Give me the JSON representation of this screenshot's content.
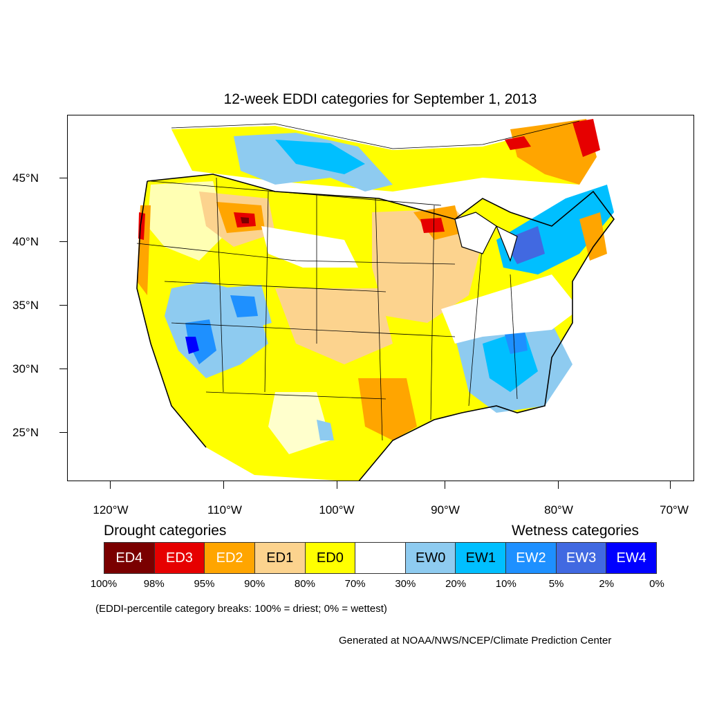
{
  "title": "12-week EDDI categories for September 1, 2013",
  "y_axis_labels": [
    "45°N",
    "40°N",
    "35°N",
    "30°N",
    "25°N"
  ],
  "x_axis_labels": [
    "120°W",
    "110°W",
    "100°W",
    "90°W",
    "80°W",
    "70°W"
  ],
  "legend": {
    "drought_heading": "Drought categories",
    "wetness_heading": "Wetness categories",
    "categories": [
      {
        "label": "ED4",
        "color": "#7a0000",
        "text_color": "#ffffff"
      },
      {
        "label": "ED3",
        "color": "#e60000",
        "text_color": "#ffffff"
      },
      {
        "label": "ED2",
        "color": "#ffa500",
        "text_color": "#ffffff"
      },
      {
        "label": "ED1",
        "color": "#fcd38e",
        "text_color": "#000000"
      },
      {
        "label": "ED0",
        "color": "#ffff00",
        "text_color": "#000000"
      },
      {
        "label": "",
        "color": "#ffffff",
        "text_color": "#000000"
      },
      {
        "label": "EW0",
        "color": "#8ecbf0",
        "text_color": "#000000"
      },
      {
        "label": "EW1",
        "color": "#00bfff",
        "text_color": "#000000"
      },
      {
        "label": "EW2",
        "color": "#1e90ff",
        "text_color": "#ffffff"
      },
      {
        "label": "EW3",
        "color": "#4169e1",
        "text_color": "#ffffff"
      },
      {
        "label": "EW4",
        "color": "#0000ff",
        "text_color": "#ffffff"
      }
    ],
    "percent_breaks": [
      "100%",
      "98%",
      "95%",
      "90%",
      "80%",
      "70%",
      "30%",
      "20%",
      "10%",
      "5%",
      "2%",
      "0%"
    ]
  },
  "note": "(EDDI-percentile category breaks: 100% = driest; 0% = wettest)",
  "credit": "Generated at NOAA/NWS/NCEP/Climate Prediction Center"
}
